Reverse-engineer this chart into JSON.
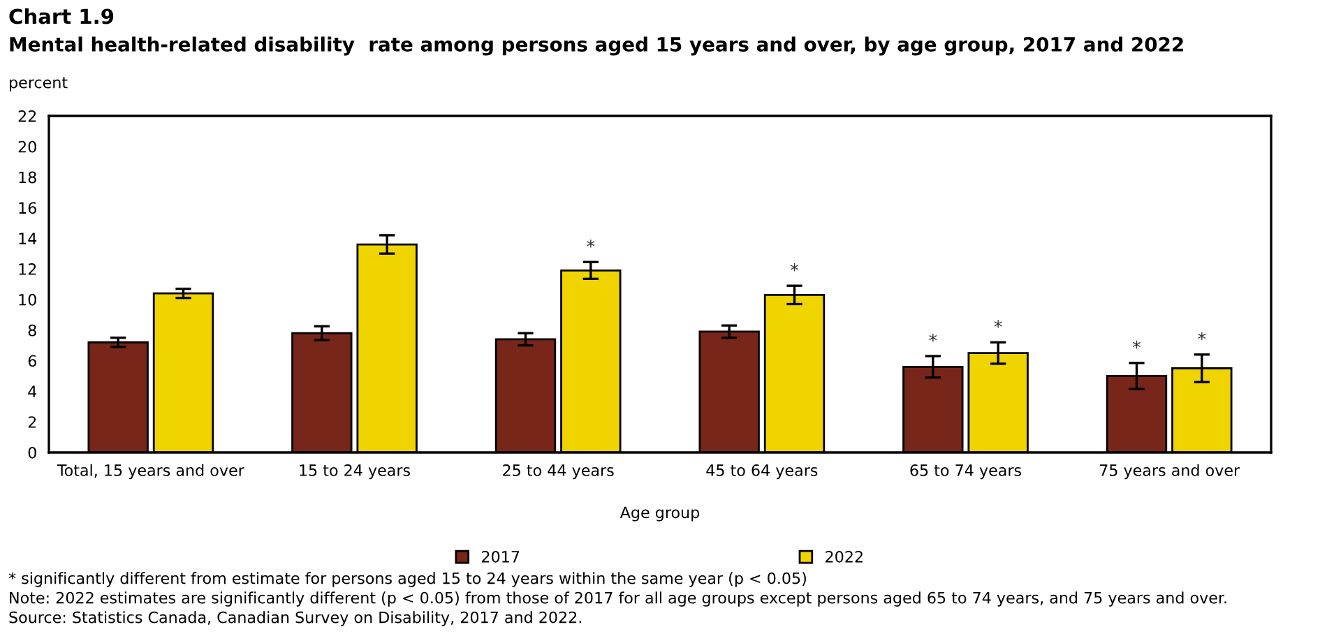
{
  "chart_data": {
    "type": "bar",
    "title": "Chart 1.9",
    "subtitle": "Mental health-related disability  rate among persons aged 15 years and over, by age group, 2017 and 2022",
    "ylabel": "percent",
    "xlabel": "Age group",
    "categories": [
      "Total, 15 years and over",
      "15 to 24 years",
      "25 to 44 years",
      "45 to 64 years",
      "65 to 74 years",
      "75 years and over"
    ],
    "series": [
      {
        "name": "2017",
        "color": "#78261a",
        "values": [
          7.2,
          7.8,
          7.4,
          7.9,
          5.6,
          5.0
        ],
        "errors": [
          0.3,
          0.45,
          0.4,
          0.4,
          0.7,
          0.85
        ]
      },
      {
        "name": "2022",
        "color": "#f0d400",
        "values": [
          10.4,
          13.6,
          11.9,
          10.3,
          6.5,
          5.5
        ],
        "errors": [
          0.3,
          0.6,
          0.55,
          0.6,
          0.7,
          0.9
        ]
      }
    ],
    "ylim": [
      0,
      22
    ],
    "yticks": [
      0,
      2,
      4,
      6,
      8,
      10,
      12,
      14,
      16,
      18,
      20,
      22
    ],
    "grid": false,
    "legend": "bottom",
    "annotations": [
      {
        "text": "*",
        "x": "25 to 44 years",
        "y": 11.9
      },
      {
        "text": "*",
        "x": "45 to 64 years",
        "y": 10.3
      },
      {
        "text": "*",
        "x": "65 to 74 years",
        "y": 5.6
      },
      {
        "text": "*",
        "x": "65 to 74 years",
        "y": 6.5
      },
      {
        "text": "*",
        "x": "75 years and over",
        "y": 5.0
      },
      {
        "text": "*",
        "x": "75 years and over",
        "y": 5.5
      },
      "* significantly different from estimate for persons aged 15 to 24 years within the same year (p < 0.05)",
      "Note: 2022 estimates are significantly different (p < 0.05) from those of 2017 for all age groups except persons aged 65 to 74 years, and 75 years and over.",
      "Source: Statistics Canada, Canadian Survey on Disability, 2017 and 2022."
    ]
  }
}
